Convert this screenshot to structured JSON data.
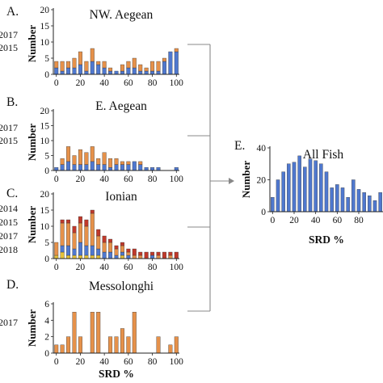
{
  "colors": {
    "blue": "#4f78cf",
    "orange": "#e6914a",
    "red": "#c0392b",
    "yellow": "#e6c23a",
    "connector": "#888888"
  },
  "chart_data": [
    {
      "id": "A",
      "type": "bar",
      "stacked": true,
      "letter": "A.",
      "title": "NW. Aegean",
      "xlabel": "",
      "ylabel": "Number",
      "xticks": [
        "0",
        "20",
        "40",
        "60",
        "80",
        "100"
      ],
      "yticks": [
        "0",
        "5",
        "10",
        "15",
        "20"
      ],
      "ylim": [
        0,
        20
      ],
      "x": [
        0,
        5,
        10,
        15,
        20,
        25,
        30,
        35,
        40,
        45,
        50,
        55,
        60,
        65,
        70,
        75,
        80,
        85,
        90,
        95,
        100
      ],
      "series": [
        {
          "name": "2017",
          "color": "blue",
          "values": [
            2,
            1,
            2,
            2,
            3,
            1,
            4,
            3,
            2,
            1,
            1,
            1,
            2,
            2,
            1,
            1,
            1,
            1,
            4,
            7,
            7
          ]
        },
        {
          "name": "2015",
          "color": "orange",
          "values": [
            2,
            3,
            2,
            3,
            4,
            3,
            4,
            1,
            2,
            1,
            0,
            2,
            2,
            3,
            2,
            1,
            3,
            3,
            1,
            0,
            1
          ]
        }
      ],
      "legend": [
        "2017",
        "2015"
      ]
    },
    {
      "id": "B",
      "type": "bar",
      "stacked": true,
      "letter": "B.",
      "title": "E. Aegean",
      "xlabel": "",
      "ylabel": "Number",
      "xticks": [
        "0",
        "20",
        "40",
        "60",
        "80",
        "100"
      ],
      "yticks": [
        "0",
        "5",
        "10",
        "15",
        "20"
      ],
      "ylim": [
        0,
        20
      ],
      "x": [
        0,
        5,
        10,
        15,
        20,
        25,
        30,
        35,
        40,
        45,
        50,
        55,
        60,
        65,
        70,
        75,
        80,
        85,
        90,
        95,
        100
      ],
      "series": [
        {
          "name": "2017",
          "color": "blue",
          "values": [
            1,
            2,
            3,
            2,
            2,
            2,
            3,
            2,
            2,
            1,
            2,
            2,
            2,
            3,
            2,
            1,
            1,
            1,
            0,
            0,
            1
          ]
        },
        {
          "name": "2015",
          "color": "orange",
          "values": [
            0,
            2,
            5,
            3,
            5,
            4,
            5,
            2,
            4,
            3,
            2,
            1,
            1,
            0,
            1,
            0,
            0,
            0,
            0,
            0,
            0
          ]
        }
      ],
      "legend": [
        "2017",
        "2015"
      ]
    },
    {
      "id": "C",
      "type": "bar",
      "stacked": true,
      "letter": "C.",
      "title": "Ionian",
      "xlabel": "",
      "ylabel": "Number",
      "xticks": [
        "0",
        "20",
        "40",
        "60",
        "80",
        "100"
      ],
      "yticks": [
        "0",
        "5",
        "10",
        "15",
        "20"
      ],
      "ylim": [
        0,
        20
      ],
      "x": [
        0,
        5,
        10,
        15,
        20,
        25,
        30,
        35,
        40,
        45,
        50,
        55,
        60,
        65,
        70,
        75,
        80,
        85,
        90,
        95,
        100
      ],
      "series": [
        {
          "name": "2018",
          "color": "yellow",
          "values": [
            1,
            2,
            1,
            1,
            1,
            1,
            1,
            1,
            0,
            0,
            0,
            1,
            0,
            0,
            0,
            0,
            0,
            0,
            0,
            0,
            0
          ]
        },
        {
          "name": "2017",
          "color": "blue",
          "values": [
            0,
            2,
            3,
            2,
            4,
            3,
            3,
            2,
            2,
            2,
            1,
            1,
            1,
            0,
            0,
            0,
            1,
            0,
            0,
            0,
            0
          ]
        },
        {
          "name": "2015",
          "color": "orange",
          "values": [
            4,
            7,
            7,
            5,
            6,
            6,
            10,
            4,
            3,
            3,
            2,
            2,
            1,
            1,
            1,
            0,
            0,
            1,
            0,
            1,
            0
          ]
        },
        {
          "name": "2014",
          "color": "red",
          "values": [
            0,
            1,
            1,
            2,
            2,
            2,
            1,
            2,
            2,
            1,
            1,
            1,
            1,
            2,
            1,
            2,
            1,
            1,
            2,
            1,
            2
          ]
        }
      ],
      "legend": [
        "2014",
        "2015",
        "2017",
        "2018"
      ]
    },
    {
      "id": "D",
      "type": "bar",
      "stacked": false,
      "letter": "D.",
      "title": "Messolonghi",
      "xlabel": "SRD %",
      "ylabel": "Number",
      "xticks": [
        "0",
        "20",
        "40",
        "60",
        "80",
        "100"
      ],
      "yticks": [
        "0",
        "2",
        "4",
        "6"
      ],
      "ylim": [
        0,
        6
      ],
      "x": [
        0,
        5,
        10,
        15,
        20,
        25,
        30,
        35,
        40,
        45,
        50,
        55,
        60,
        65,
        70,
        75,
        80,
        85,
        90,
        95,
        100
      ],
      "series": [
        {
          "name": "2017",
          "color": "orange",
          "values": [
            1,
            1,
            2,
            5,
            2,
            0,
            5,
            5,
            0,
            2,
            2,
            3,
            2,
            5,
            0,
            0,
            0,
            2,
            0,
            1,
            2
          ]
        }
      ],
      "legend": [
        "2017"
      ]
    },
    {
      "id": "E",
      "type": "bar",
      "stacked": false,
      "letter": "E.",
      "title": "All Fish",
      "xlabel": "SRD %",
      "ylabel": "Number",
      "xticks": [
        "0",
        "20",
        "40",
        "60",
        "80"
      ],
      "yticks": [
        "0",
        "20",
        "40"
      ],
      "ylim": [
        0,
        40
      ],
      "x": [
        0,
        5,
        10,
        15,
        20,
        25,
        30,
        35,
        40,
        45,
        50,
        55,
        60,
        65,
        70,
        75,
        80,
        85,
        90,
        95,
        100
      ],
      "series": [
        {
          "name": "All Fish",
          "color": "blue",
          "values": [
            9,
            20,
            25,
            30,
            31,
            35,
            28,
            33,
            32,
            30,
            25,
            15,
            17,
            15,
            9,
            20,
            14,
            12,
            10,
            7,
            12
          ]
        }
      ],
      "legend": []
    }
  ]
}
